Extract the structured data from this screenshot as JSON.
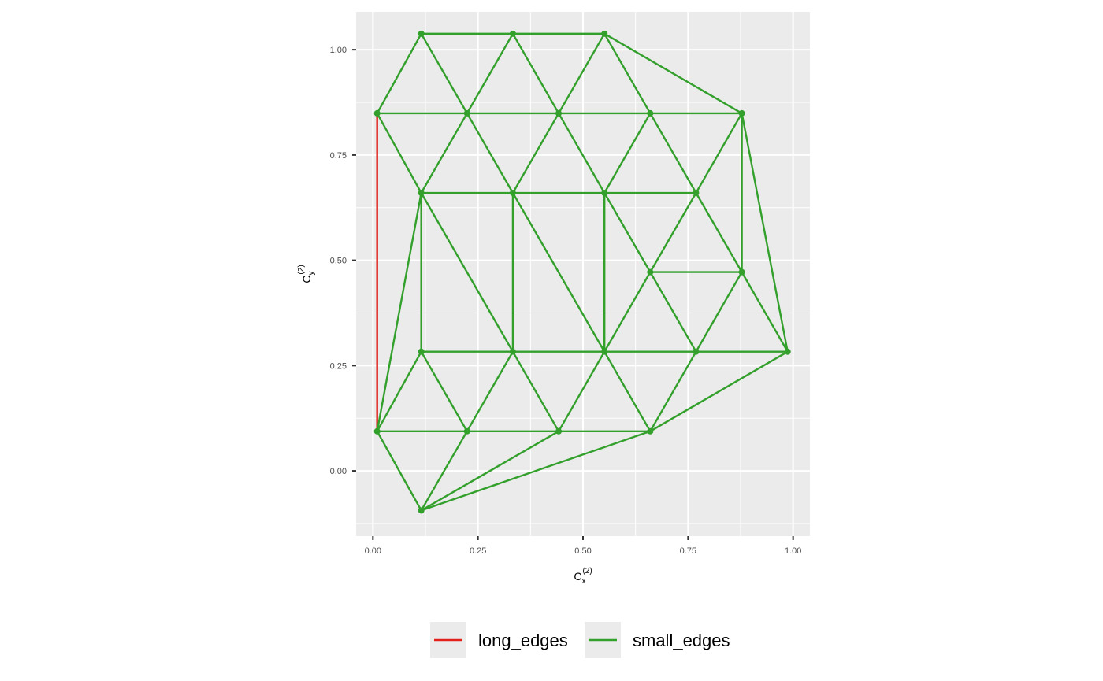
{
  "chart_data": {
    "type": "network",
    "xlim": [
      -0.04,
      1.04
    ],
    "ylim": [
      -0.155,
      1.09
    ],
    "x_ticks": [
      0.0,
      0.25,
      0.5,
      0.75,
      1.0
    ],
    "x_tick_labels": [
      "0.00",
      "0.25",
      "0.50",
      "0.75",
      "1.00"
    ],
    "y_ticks": [
      0.0,
      0.25,
      0.5,
      0.75,
      1.0
    ],
    "y_tick_labels": [
      "0.00",
      "0.25",
      "0.50",
      "0.75",
      "1.00"
    ],
    "xlabel": {
      "base": "C",
      "sub": "x",
      "sup": "(2)"
    },
    "ylabel": {
      "base": "C",
      "sub": "y",
      "sup": "(2)"
    },
    "grid": true,
    "panel_background": "#ebebeb",
    "legend_position": "bottom",
    "nodes": [
      [
        0.115,
        1.038
      ],
      [
        0.333,
        1.038
      ],
      [
        0.551,
        1.038
      ],
      [
        0.01,
        0.849
      ],
      [
        0.224,
        0.849
      ],
      [
        0.442,
        0.849
      ],
      [
        0.66,
        0.849
      ],
      [
        0.878,
        0.849
      ],
      [
        0.115,
        0.66
      ],
      [
        0.333,
        0.66
      ],
      [
        0.551,
        0.66
      ],
      [
        0.769,
        0.66
      ],
      [
        0.66,
        0.472
      ],
      [
        0.878,
        0.472
      ],
      [
        0.115,
        0.283
      ],
      [
        0.333,
        0.283
      ],
      [
        0.551,
        0.283
      ],
      [
        0.769,
        0.283
      ],
      [
        0.987,
        0.283
      ],
      [
        0.01,
        0.094
      ],
      [
        0.224,
        0.094
      ],
      [
        0.442,
        0.094
      ],
      [
        0.66,
        0.094
      ],
      [
        0.115,
        -0.094
      ]
    ],
    "series": [
      {
        "name": "long_edges",
        "color": "#e3211c",
        "edges": [
          [
            3,
            19
          ]
        ]
      },
      {
        "name": "small_edges",
        "color": "#33a02c",
        "edges": [
          [
            0,
            1
          ],
          [
            1,
            2
          ],
          [
            0,
            3
          ],
          [
            0,
            4
          ],
          [
            1,
            4
          ],
          [
            1,
            5
          ],
          [
            2,
            5
          ],
          [
            2,
            6
          ],
          [
            2,
            7
          ],
          [
            3,
            4
          ],
          [
            4,
            5
          ],
          [
            5,
            6
          ],
          [
            6,
            7
          ],
          [
            3,
            8
          ],
          [
            4,
            8
          ],
          [
            4,
            9
          ],
          [
            5,
            9
          ],
          [
            5,
            10
          ],
          [
            6,
            10
          ],
          [
            6,
            11
          ],
          [
            7,
            11
          ],
          [
            7,
            13
          ],
          [
            7,
            18
          ],
          [
            8,
            9
          ],
          [
            9,
            10
          ],
          [
            10,
            11
          ],
          [
            8,
            14
          ],
          [
            8,
            15
          ],
          [
            8,
            19
          ],
          [
            9,
            15
          ],
          [
            9,
            16
          ],
          [
            10,
            16
          ],
          [
            10,
            12
          ],
          [
            11,
            12
          ],
          [
            11,
            13
          ],
          [
            12,
            13
          ],
          [
            12,
            16
          ],
          [
            12,
            17
          ],
          [
            13,
            17
          ],
          [
            13,
            18
          ],
          [
            14,
            15
          ],
          [
            15,
            16
          ],
          [
            16,
            17
          ],
          [
            17,
            18
          ],
          [
            14,
            19
          ],
          [
            14,
            20
          ],
          [
            15,
            20
          ],
          [
            15,
            21
          ],
          [
            16,
            21
          ],
          [
            16,
            22
          ],
          [
            17,
            22
          ],
          [
            18,
            22
          ],
          [
            19,
            20
          ],
          [
            20,
            21
          ],
          [
            21,
            22
          ],
          [
            19,
            23
          ],
          [
            20,
            23
          ],
          [
            21,
            23
          ],
          [
            22,
            23
          ]
        ]
      }
    ],
    "node_color": "#33a02c"
  }
}
